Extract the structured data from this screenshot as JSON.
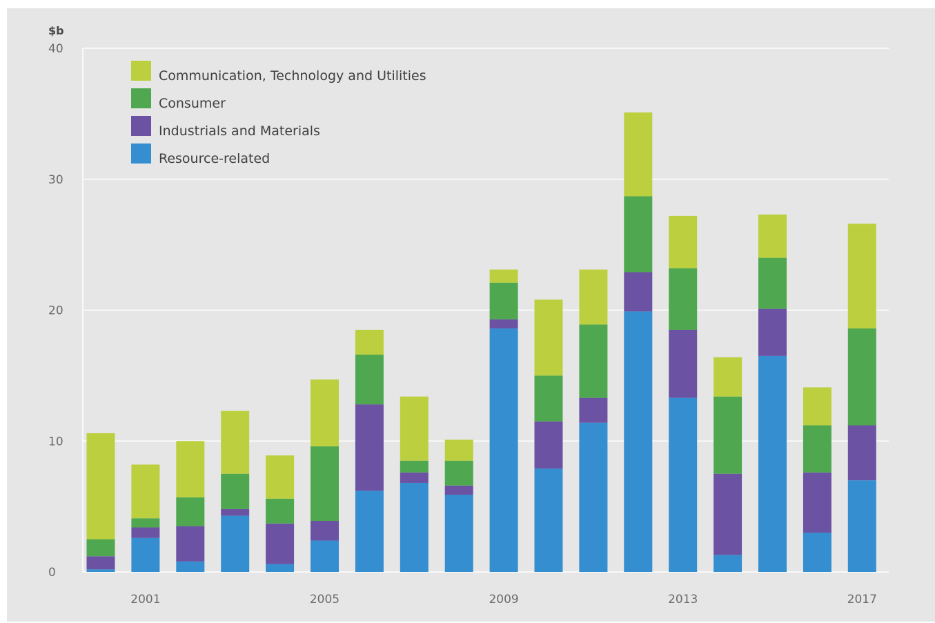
{
  "chart_data": {
    "type": "bar",
    "stacked": true,
    "y_unit_label": "$b",
    "ylim": [
      0,
      40
    ],
    "y_ticks": [
      0,
      10,
      20,
      30,
      40
    ],
    "grid": true,
    "legend_placement": "top-left",
    "x": [
      2000,
      2001,
      2002,
      2003,
      2004,
      2005,
      2006,
      2007,
      2008,
      2009,
      2010,
      2011,
      2012,
      2013,
      2014,
      2015,
      2016,
      2017
    ],
    "x_tick_labels": [
      "2001",
      "2005",
      "2009",
      "2013",
      "2017"
    ],
    "x_tick_values": [
      2001,
      2005,
      2009,
      2013,
      2017
    ],
    "series": [
      {
        "name": "Resource-related",
        "color": "#348ecf",
        "values": [
          0.2,
          2.6,
          0.8,
          4.3,
          0.6,
          2.4,
          6.2,
          6.8,
          5.9,
          18.6,
          7.9,
          11.4,
          19.9,
          13.3,
          1.3,
          16.5,
          3.0,
          7.0
        ]
      },
      {
        "name": "Industrials and Materials",
        "color": "#6b52a3",
        "values": [
          1.0,
          0.8,
          2.7,
          0.5,
          3.1,
          1.5,
          6.6,
          0.8,
          0.7,
          0.7,
          3.6,
          1.9,
          3.0,
          5.2,
          6.2,
          3.6,
          4.6,
          4.2
        ]
      },
      {
        "name": "Consumer",
        "color": "#4fa850",
        "values": [
          1.3,
          0.7,
          2.2,
          2.7,
          1.9,
          5.7,
          3.8,
          0.9,
          1.9,
          2.8,
          3.5,
          5.6,
          5.8,
          4.7,
          5.9,
          3.9,
          3.6,
          7.4
        ]
      },
      {
        "name": "Communication, Technology and Utilities",
        "color": "#bcd03f",
        "values": [
          8.1,
          4.1,
          4.3,
          4.8,
          3.3,
          5.1,
          1.9,
          4.9,
          1.6,
          1.0,
          5.8,
          4.2,
          6.4,
          4.0,
          3.0,
          3.3,
          2.9,
          8.0
        ]
      }
    ]
  },
  "legend": [
    {
      "label": "Communication, Technology and Utilities",
      "color": "#bcd03f"
    },
    {
      "label": "Consumer",
      "color": "#4fa850"
    },
    {
      "label": "Industrials and Materials",
      "color": "#6b52a3"
    },
    {
      "label": "Resource-related",
      "color": "#348ecf"
    }
  ]
}
